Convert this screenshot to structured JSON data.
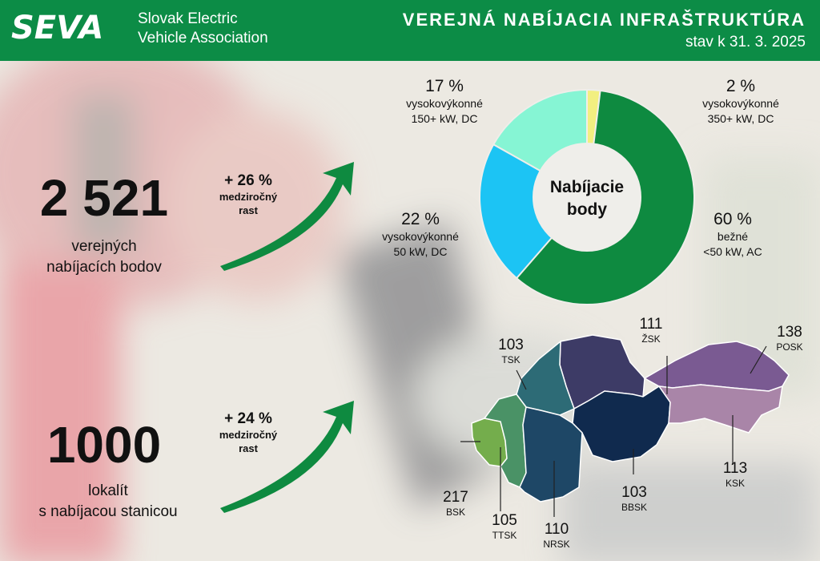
{
  "header": {
    "brand_line1": "Slovak Electric",
    "brand_line2": "Vehicle Association",
    "title": "VEREJNÁ NABÍJACIA INFRAŠTRUKTÚRA",
    "subtitle": "stav k 31. 3. 2025",
    "logo_text": "SEVA"
  },
  "stats": [
    {
      "value": "2 521",
      "line1": "verejných",
      "line2": "nabíjacích bodov",
      "growth": "+ 26 %",
      "growth_l1": "medziročný",
      "growth_l2": "rast"
    },
    {
      "value": "1000",
      "line1": "lokalít",
      "line2": "s nabíjacou stanicou",
      "growth": "+ 24 %",
      "growth_l1": "medziročný",
      "growth_l2": "rast"
    }
  ],
  "chart_data": {
    "type": "pie",
    "title": "Nabíjacie body",
    "slices": [
      {
        "pct": "2 %",
        "value": 2,
        "l1": "vysokovýkonné",
        "l2": "350+ kW, DC",
        "color": "#f2ef80"
      },
      {
        "pct": "60 %",
        "value": 60,
        "l1": "bežné",
        "l2": "<50 kW, AC",
        "color": "#0e8a40"
      },
      {
        "pct": "22 %",
        "value": 22,
        "l1": "vysokovýkonné",
        "l2": "50 kW, DC",
        "color": "#1cc4f4"
      },
      {
        "pct": "17 %",
        "value": 17,
        "l1": "vysokovýkonné",
        "l2": "150+ kW, DC",
        "color": "#86f5d4"
      }
    ]
  },
  "regions": [
    {
      "code": "ŽSK",
      "value": "111",
      "color": "#3d3b66"
    },
    {
      "code": "POSK",
      "value": "138",
      "color": "#7a5a92"
    },
    {
      "code": "TSK",
      "value": "103",
      "color": "#2d6b76"
    },
    {
      "code": "BBSK",
      "value": "103",
      "color": "#102a4e"
    },
    {
      "code": "KSK",
      "value": "113",
      "color": "#a985a8"
    },
    {
      "code": "BSK",
      "value": "217",
      "color": "#74ad4c"
    },
    {
      "code": "TTSK",
      "value": "105",
      "color": "#4a9266"
    },
    {
      "code": "NRSK",
      "value": "110",
      "color": "#1e4766"
    }
  ]
}
